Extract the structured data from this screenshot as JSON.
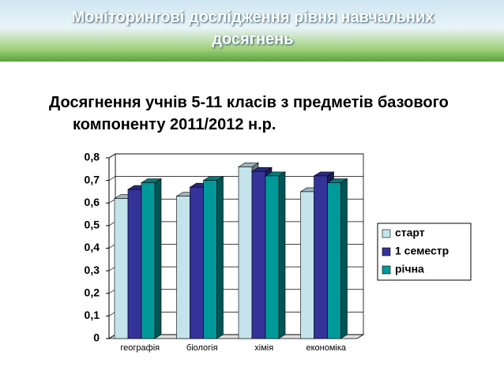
{
  "header": {
    "title": "Моніторингові дослідження рівня навчальних досягнень"
  },
  "chart_data": {
    "type": "bar",
    "title": "Досягнення учнів 5-11 класів з предметів базового компоненту 2011/2012 н.р.",
    "categories": [
      "географія",
      "біологія",
      "хімія",
      "економіка"
    ],
    "series": [
      {
        "name": "старт",
        "color": "#c4e4ec",
        "values": [
          0.62,
          0.63,
          0.76,
          0.65
        ]
      },
      {
        "name": "1 семестр",
        "color": "#333399",
        "values": [
          0.66,
          0.67,
          0.74,
          0.72
        ]
      },
      {
        "name": "річна",
        "color": "#009999",
        "values": [
          0.69,
          0.7,
          0.72,
          0.69
        ]
      }
    ],
    "ylim": [
      0,
      0.8
    ],
    "yticks": [
      0,
      {
        "value": 0.1,
        "label": "0,1"
      },
      {
        "value": 0.2,
        "label": "0,2"
      },
      {
        "value": 0.3,
        "label": "0,3"
      },
      {
        "value": 0.4,
        "label": "0,4"
      },
      {
        "value": 0.5,
        "label": "0,5"
      },
      {
        "value": 0.6,
        "label": "0,6"
      },
      {
        "value": 0.7,
        "label": "0,7"
      },
      {
        "value": 0.8,
        "label": "0,8"
      }
    ],
    "grid": true,
    "legend": "right"
  }
}
